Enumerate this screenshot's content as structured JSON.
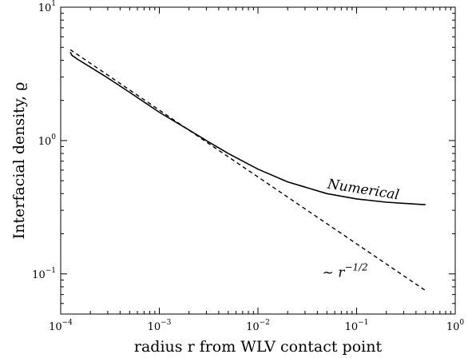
{
  "chart_data": {
    "type": "line",
    "xscale": "log",
    "yscale": "log",
    "xlim": [
      0.0001,
      1
    ],
    "ylim": [
      0.05,
      10
    ],
    "xticks": [
      {
        "value": 0.0001,
        "base": "10",
        "exp": "−4"
      },
      {
        "value": 0.001,
        "base": "10",
        "exp": "−3"
      },
      {
        "value": 0.01,
        "base": "10",
        "exp": "−2"
      },
      {
        "value": 0.1,
        "base": "10",
        "exp": "−1"
      },
      {
        "value": 1,
        "base": "10",
        "exp": "0"
      }
    ],
    "yticks": [
      {
        "value": 0.1,
        "base": "10",
        "exp": "−1"
      },
      {
        "value": 1,
        "base": "10",
        "exp": "0"
      },
      {
        "value": 10,
        "base": "10",
        "exp": "1"
      }
    ],
    "xlabel": "radius r from WLV contact point",
    "ylabel": "Interfacial density, ϱ",
    "series": [
      {
        "name": "Numerical",
        "style": "solid",
        "color": "#000000",
        "points": [
          [
            0.000125,
            4.6
          ],
          [
            0.00013,
            4.35
          ],
          [
            0.00015,
            4.05
          ],
          [
            0.0002,
            3.55
          ],
          [
            0.0003,
            2.95
          ],
          [
            0.0005,
            2.3
          ],
          [
            0.001,
            1.63
          ],
          [
            0.002,
            1.2
          ],
          [
            0.003,
            1.0
          ],
          [
            0.005,
            0.8
          ],
          [
            0.01,
            0.61
          ],
          [
            0.02,
            0.49
          ],
          [
            0.05,
            0.4
          ],
          [
            0.1,
            0.365
          ],
          [
            0.2,
            0.345
          ],
          [
            0.5,
            0.33
          ]
        ]
      },
      {
        "name": "~ r^(-1/2)",
        "style": "dashed",
        "color": "#000000",
        "points": [
          [
            0.000125,
            4.8
          ],
          [
            0.5,
            0.075
          ]
        ]
      }
    ],
    "annotations": [
      {
        "text": "Numerical",
        "x": 0.05,
        "y": 0.44,
        "rotation_deg": 9
      },
      {
        "text": "~ r",
        "superscript": "−1/2",
        "x": 0.045,
        "y": 0.095
      }
    ],
    "legend": "none",
    "grid": false
  }
}
